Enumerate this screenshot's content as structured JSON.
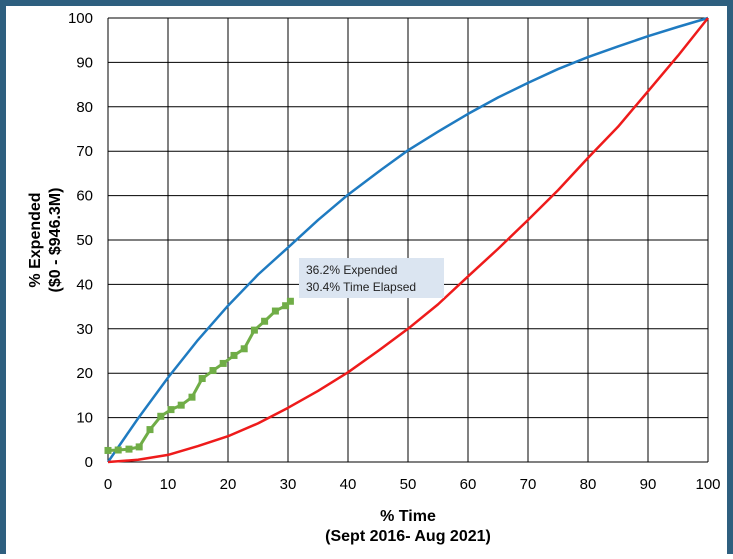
{
  "chart_data": {
    "type": "line",
    "xlabel": "% Time",
    "xlabel_sub": "(Sept 2016- Aug 2021)",
    "ylabel": "% Expended",
    "ylabel_sub": "($0 - $946.3M)",
    "xlim": [
      0,
      100
    ],
    "ylim": [
      0,
      100
    ],
    "xticks": [
      0,
      10,
      20,
      30,
      40,
      50,
      60,
      70,
      80,
      90,
      100
    ],
    "yticks": [
      0,
      10,
      20,
      30,
      40,
      50,
      60,
      70,
      80,
      90,
      100
    ],
    "grid": true,
    "annotation": {
      "line1": "36.2% Expended",
      "line2": "30.4% Time Elapsed",
      "anchor": [
        30.4,
        36.2
      ]
    },
    "colors": {
      "upper": "#1f7bc1",
      "lower": "#ee1b1b",
      "actual": "#70ad47",
      "frame": "#2e5f7f",
      "annotation_bg": "#dbe5f1"
    },
    "series": [
      {
        "id": "upper",
        "x": [
          0,
          5,
          10,
          15,
          20,
          25,
          30,
          35,
          40,
          45,
          50,
          55,
          60,
          65,
          70,
          75,
          80,
          85,
          90,
          95,
          100
        ],
        "y": [
          0,
          9.8,
          19,
          27.5,
          35.2,
          42.2,
          48.3,
          54.5,
          60.2,
          65.3,
          70.2,
          74.4,
          78.4,
          82.1,
          85.4,
          88.5,
          91.2,
          93.6,
          95.9,
          98,
          100
        ]
      },
      {
        "id": "lower",
        "x": [
          0,
          5,
          10,
          15,
          20,
          25,
          30,
          35,
          40,
          45,
          50,
          55,
          60,
          65,
          70,
          75,
          80,
          85,
          90,
          95,
          100
        ],
        "y": [
          0,
          0.5,
          1.6,
          3.6,
          5.8,
          8.7,
          12.2,
          16,
          20.2,
          25,
          30,
          35.5,
          41.8,
          48,
          54.5,
          61.2,
          68.5,
          75.5,
          83.5,
          91.5,
          100
        ]
      },
      {
        "id": "actual",
        "x": [
          0,
          1.7,
          3.5,
          5.2,
          7,
          8.8,
          10.5,
          12.2,
          14,
          15.7,
          17.5,
          19.2,
          21,
          22.7,
          24.4,
          26.1,
          27.9,
          29.6,
          30.4
        ],
        "y": [
          2.6,
          2.7,
          2.9,
          3.4,
          7.3,
          10.3,
          11.8,
          12.8,
          14.6,
          18.8,
          20.6,
          22.2,
          24,
          25.5,
          29.7,
          31.7,
          34,
          35.2,
          36.2
        ]
      }
    ]
  }
}
